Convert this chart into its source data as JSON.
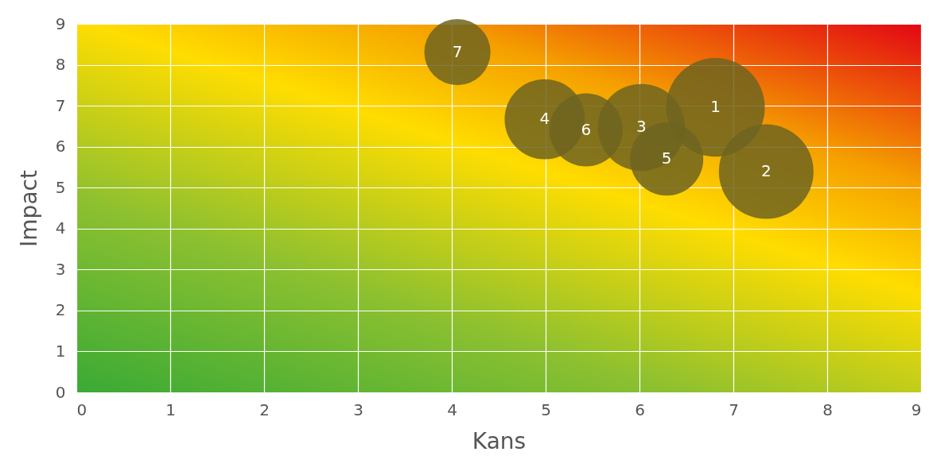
{
  "chart_data": {
    "type": "bubble",
    "xlabel": "Kans",
    "ylabel": "Impact",
    "x": [
      6.81,
      7.35,
      6.02,
      4.99,
      6.29,
      5.43,
      4.06
    ],
    "series": [
      {
        "color": "#6e6420",
        "values": [
          6.96,
          5.39,
          6.47,
          6.67,
          5.7,
          6.41,
          8.31
        ],
        "sizes": [
          1,
          0.92,
          0.78,
          0.66,
          0.55,
          0.55,
          0.45
        ]
      }
    ],
    "xlim": [
      0,
      9
    ],
    "ylim": [
      0,
      9
    ],
    "xticks": [
      0,
      1,
      2,
      3,
      4,
      5,
      6,
      7,
      8,
      9
    ],
    "yticks": [
      0,
      1,
      2,
      3,
      4,
      5,
      6,
      7,
      8,
      9
    ],
    "grid": true,
    "annotations": [
      {
        "text": "1",
        "x": 6.81,
        "y": 6.96
      },
      {
        "text": "2",
        "x": 7.35,
        "y": 5.39
      },
      {
        "text": "3",
        "x": 6.02,
        "y": 6.47
      },
      {
        "text": "4",
        "x": 4.99,
        "y": 6.67
      },
      {
        "text": "5",
        "x": 6.29,
        "y": 5.7
      },
      {
        "text": "6",
        "x": 5.43,
        "y": 6.41
      },
      {
        "text": "7",
        "x": 4.06,
        "y": 8.31
      }
    ]
  }
}
